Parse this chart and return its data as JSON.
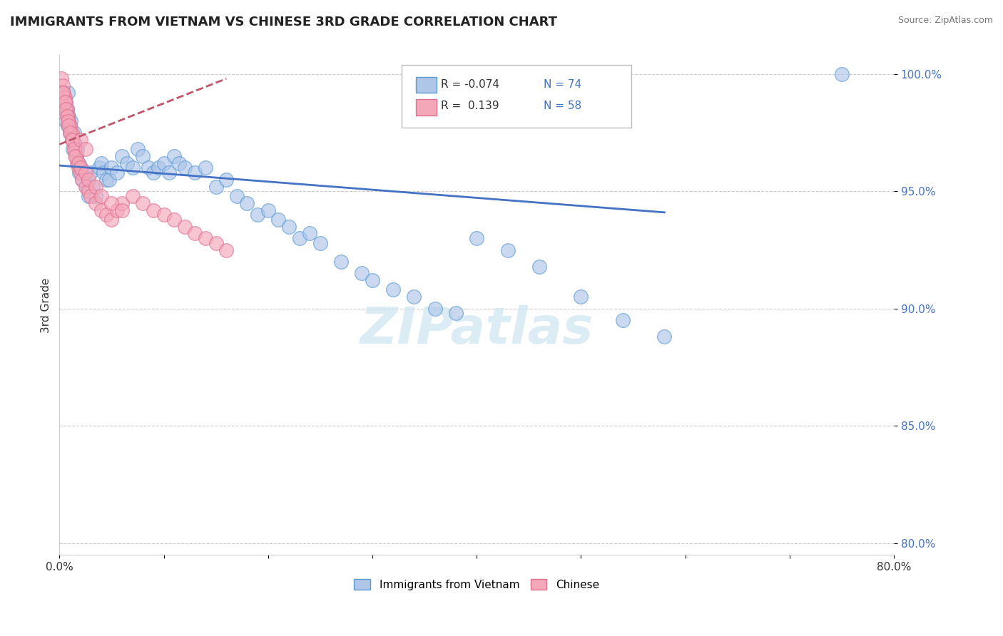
{
  "title": "IMMIGRANTS FROM VIETNAM VS CHINESE 3RD GRADE CORRELATION CHART",
  "source": "Source: ZipAtlas.com",
  "ylabel": "3rd Grade",
  "xlim": [
    0.0,
    0.8
  ],
  "ylim": [
    0.795,
    1.008
  ],
  "y_ticks": [
    0.8,
    0.85,
    0.9,
    0.95,
    1.0
  ],
  "y_tick_labels": [
    "80.0%",
    "85.0%",
    "90.0%",
    "95.0%",
    "100.0%"
  ],
  "x_tick_positions": [
    0.0,
    0.1,
    0.2,
    0.3,
    0.4,
    0.5,
    0.6,
    0.7,
    0.8
  ],
  "x_tick_labels": [
    "0.0%",
    "",
    "",
    "",
    "",
    "",
    "",
    "",
    "80.0%"
  ],
  "legend_entries": [
    {
      "label": "Immigrants from Vietnam",
      "color": "#aec6e8",
      "edge": "#5b9bd5",
      "R": "-0.074",
      "N": "74"
    },
    {
      "label": "Chinese",
      "color": "#f4a7b9",
      "edge": "#e07090",
      "R": "0.139",
      "N": "58"
    }
  ],
  "blue_scatter_x": [
    0.002,
    0.003,
    0.004,
    0.005,
    0.006,
    0.007,
    0.008,
    0.009,
    0.01,
    0.011,
    0.012,
    0.013,
    0.014,
    0.015,
    0.016,
    0.017,
    0.018,
    0.019,
    0.02,
    0.022,
    0.024,
    0.026,
    0.028,
    0.03,
    0.032,
    0.035,
    0.038,
    0.04,
    0.042,
    0.045,
    0.048,
    0.05,
    0.055,
    0.06,
    0.065,
    0.07,
    0.075,
    0.08,
    0.085,
    0.09,
    0.095,
    0.1,
    0.105,
    0.11,
    0.115,
    0.12,
    0.13,
    0.14,
    0.15,
    0.16,
    0.17,
    0.18,
    0.19,
    0.2,
    0.21,
    0.22,
    0.23,
    0.24,
    0.25,
    0.27,
    0.29,
    0.3,
    0.32,
    0.34,
    0.36,
    0.38,
    0.4,
    0.43,
    0.46,
    0.5,
    0.54,
    0.58,
    0.75,
    0.008
  ],
  "blue_scatter_y": [
    0.99,
    0.992,
    0.985,
    0.988,
    0.98,
    0.985,
    0.978,
    0.982,
    0.975,
    0.98,
    0.972,
    0.968,
    0.975,
    0.97,
    0.965,
    0.968,
    0.962,
    0.958,
    0.96,
    0.955,
    0.958,
    0.952,
    0.948,
    0.958,
    0.952,
    0.948,
    0.96,
    0.962,
    0.958,
    0.955,
    0.955,
    0.96,
    0.958,
    0.965,
    0.962,
    0.96,
    0.968,
    0.965,
    0.96,
    0.958,
    0.96,
    0.962,
    0.958,
    0.965,
    0.962,
    0.96,
    0.958,
    0.96,
    0.952,
    0.955,
    0.948,
    0.945,
    0.94,
    0.942,
    0.938,
    0.935,
    0.93,
    0.932,
    0.928,
    0.92,
    0.915,
    0.912,
    0.908,
    0.905,
    0.9,
    0.898,
    0.93,
    0.925,
    0.918,
    0.905,
    0.895,
    0.888,
    1.0,
    0.992
  ],
  "pink_scatter_x": [
    0.002,
    0.003,
    0.004,
    0.005,
    0.006,
    0.007,
    0.008,
    0.009,
    0.01,
    0.011,
    0.012,
    0.013,
    0.014,
    0.015,
    0.016,
    0.017,
    0.018,
    0.02,
    0.022,
    0.025,
    0.028,
    0.03,
    0.035,
    0.04,
    0.045,
    0.05,
    0.055,
    0.06,
    0.07,
    0.08,
    0.09,
    0.1,
    0.11,
    0.12,
    0.13,
    0.14,
    0.15,
    0.16,
    0.003,
    0.005,
    0.006,
    0.007,
    0.008,
    0.009,
    0.01,
    0.012,
    0.014,
    0.015,
    0.018,
    0.02,
    0.025,
    0.028,
    0.035,
    0.04,
    0.05,
    0.06,
    0.02,
    0.025
  ],
  "pink_scatter_y": [
    0.998,
    0.995,
    0.992,
    0.99,
    0.988,
    0.985,
    0.982,
    0.98,
    0.978,
    0.975,
    0.975,
    0.972,
    0.97,
    0.968,
    0.965,
    0.962,
    0.96,
    0.958,
    0.955,
    0.952,
    0.95,
    0.948,
    0.945,
    0.942,
    0.94,
    0.938,
    0.942,
    0.945,
    0.948,
    0.945,
    0.942,
    0.94,
    0.938,
    0.935,
    0.932,
    0.93,
    0.928,
    0.925,
    0.992,
    0.988,
    0.985,
    0.982,
    0.98,
    0.978,
    0.975,
    0.972,
    0.968,
    0.965,
    0.962,
    0.96,
    0.958,
    0.955,
    0.952,
    0.948,
    0.945,
    0.942,
    0.972,
    0.968
  ],
  "blue_line_x": [
    0.0,
    0.58
  ],
  "blue_line_y": [
    0.961,
    0.941
  ],
  "pink_line_x": [
    0.0,
    0.16
  ],
  "pink_line_y": [
    0.97,
    0.998
  ],
  "pink_line_style": "--",
  "watermark_text": "ZIPatlas",
  "watermark_color": "#cce5f0",
  "grid_color": "#cccccc",
  "blue_color": "#aec6e8",
  "pink_color": "#f4a7b9",
  "blue_edge": "#5b9bd5",
  "pink_edge": "#e07090",
  "blue_line_color": "#4472c4",
  "pink_line_color": "#c0556a"
}
